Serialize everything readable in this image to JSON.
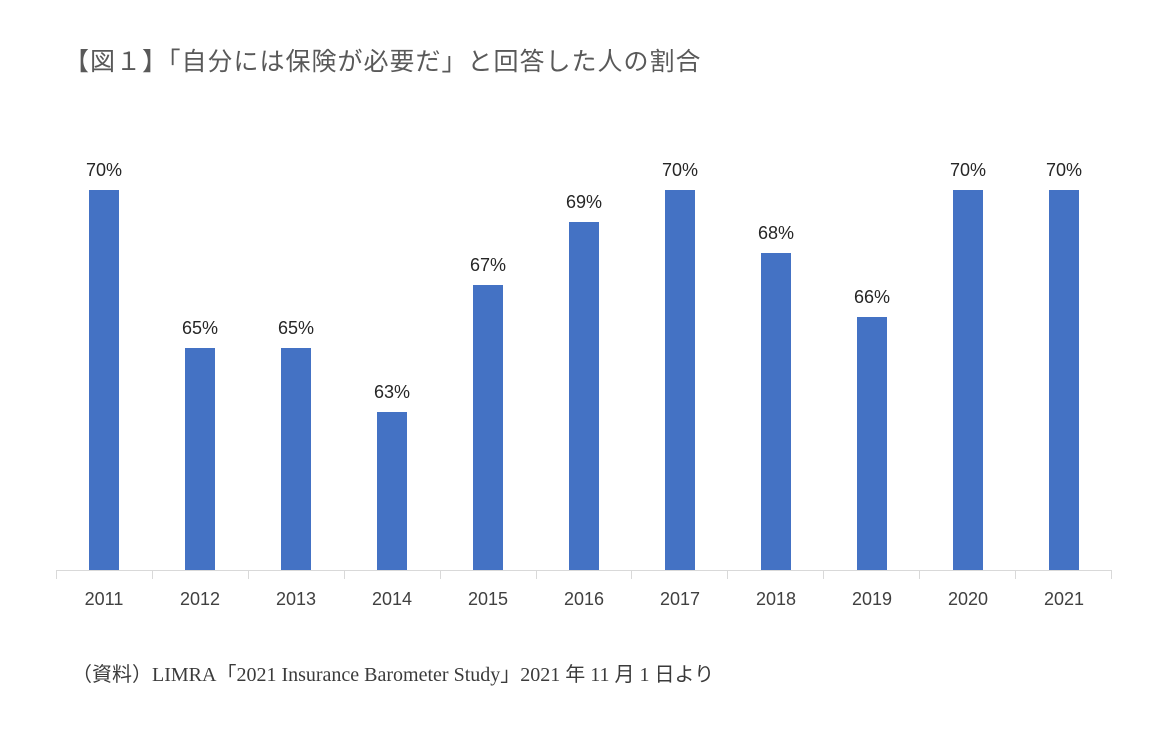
{
  "title": "【図１】「自分には保険が必要だ」と回答した人の割合",
  "source_note": "（資料）LIMRA「2021 Insurance Barometer Study」2021 年 11 月 1 日より",
  "chart_data": {
    "type": "bar",
    "title": "【図１】「自分には保険が必要だ」と回答した人の割合",
    "categories": [
      "2011",
      "2012",
      "2013",
      "2014",
      "2015",
      "2016",
      "2017",
      "2018",
      "2019",
      "2020",
      "2021"
    ],
    "values": [
      70,
      65,
      65,
      63,
      67,
      69,
      70,
      68,
      66,
      70,
      70
    ],
    "data_labels": [
      "70%",
      "65%",
      "65%",
      "63%",
      "67%",
      "69%",
      "70%",
      "68%",
      "66%",
      "70%",
      "70%"
    ],
    "xlabel": "",
    "ylabel": "",
    "ylim": [
      58,
      72
    ],
    "grid": false,
    "legend": false,
    "bar_color": "#4472C4",
    "axis_color": "#D9D9D9",
    "label_color": "#262626"
  }
}
